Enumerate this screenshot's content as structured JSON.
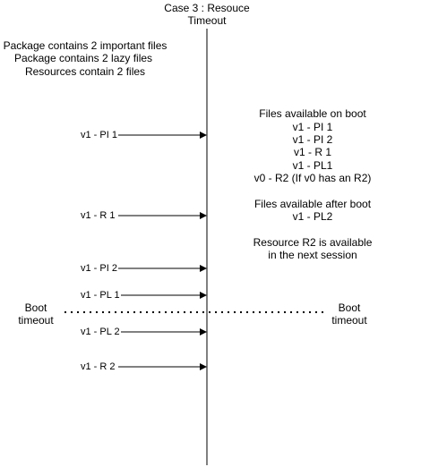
{
  "title": {
    "line1": "Case 3 : Resouce",
    "line2": "Timeout"
  },
  "package_info": [
    "Package contains 2 important files",
    "Package contains 2  lazy files",
    "Resources contain 2 files"
  ],
  "events": [
    "v1 - PI 1",
    "v1 - R 1",
    "v1 - PI 2",
    "v1 - PL 1",
    "v1 - PL 2",
    "v1 - R 2"
  ],
  "boot_timeout": {
    "left_line1": "Boot",
    "left_line2": "timeout",
    "right_line1": "Boot",
    "right_line2": "timeout"
  },
  "files_on_boot": {
    "heading": "Files available on boot",
    "items": [
      "v1 - PI 1",
      "v1 - PI 2",
      "v1 - R 1",
      "v1 - PL1",
      "v0 - R2 (If v0 has an R2)"
    ]
  },
  "files_after_boot": {
    "heading": "Files available after boot",
    "items": [
      "v1 - PL2"
    ]
  },
  "resource_note": {
    "line1": "Resource R2 is available",
    "line2": "in the next session"
  }
}
